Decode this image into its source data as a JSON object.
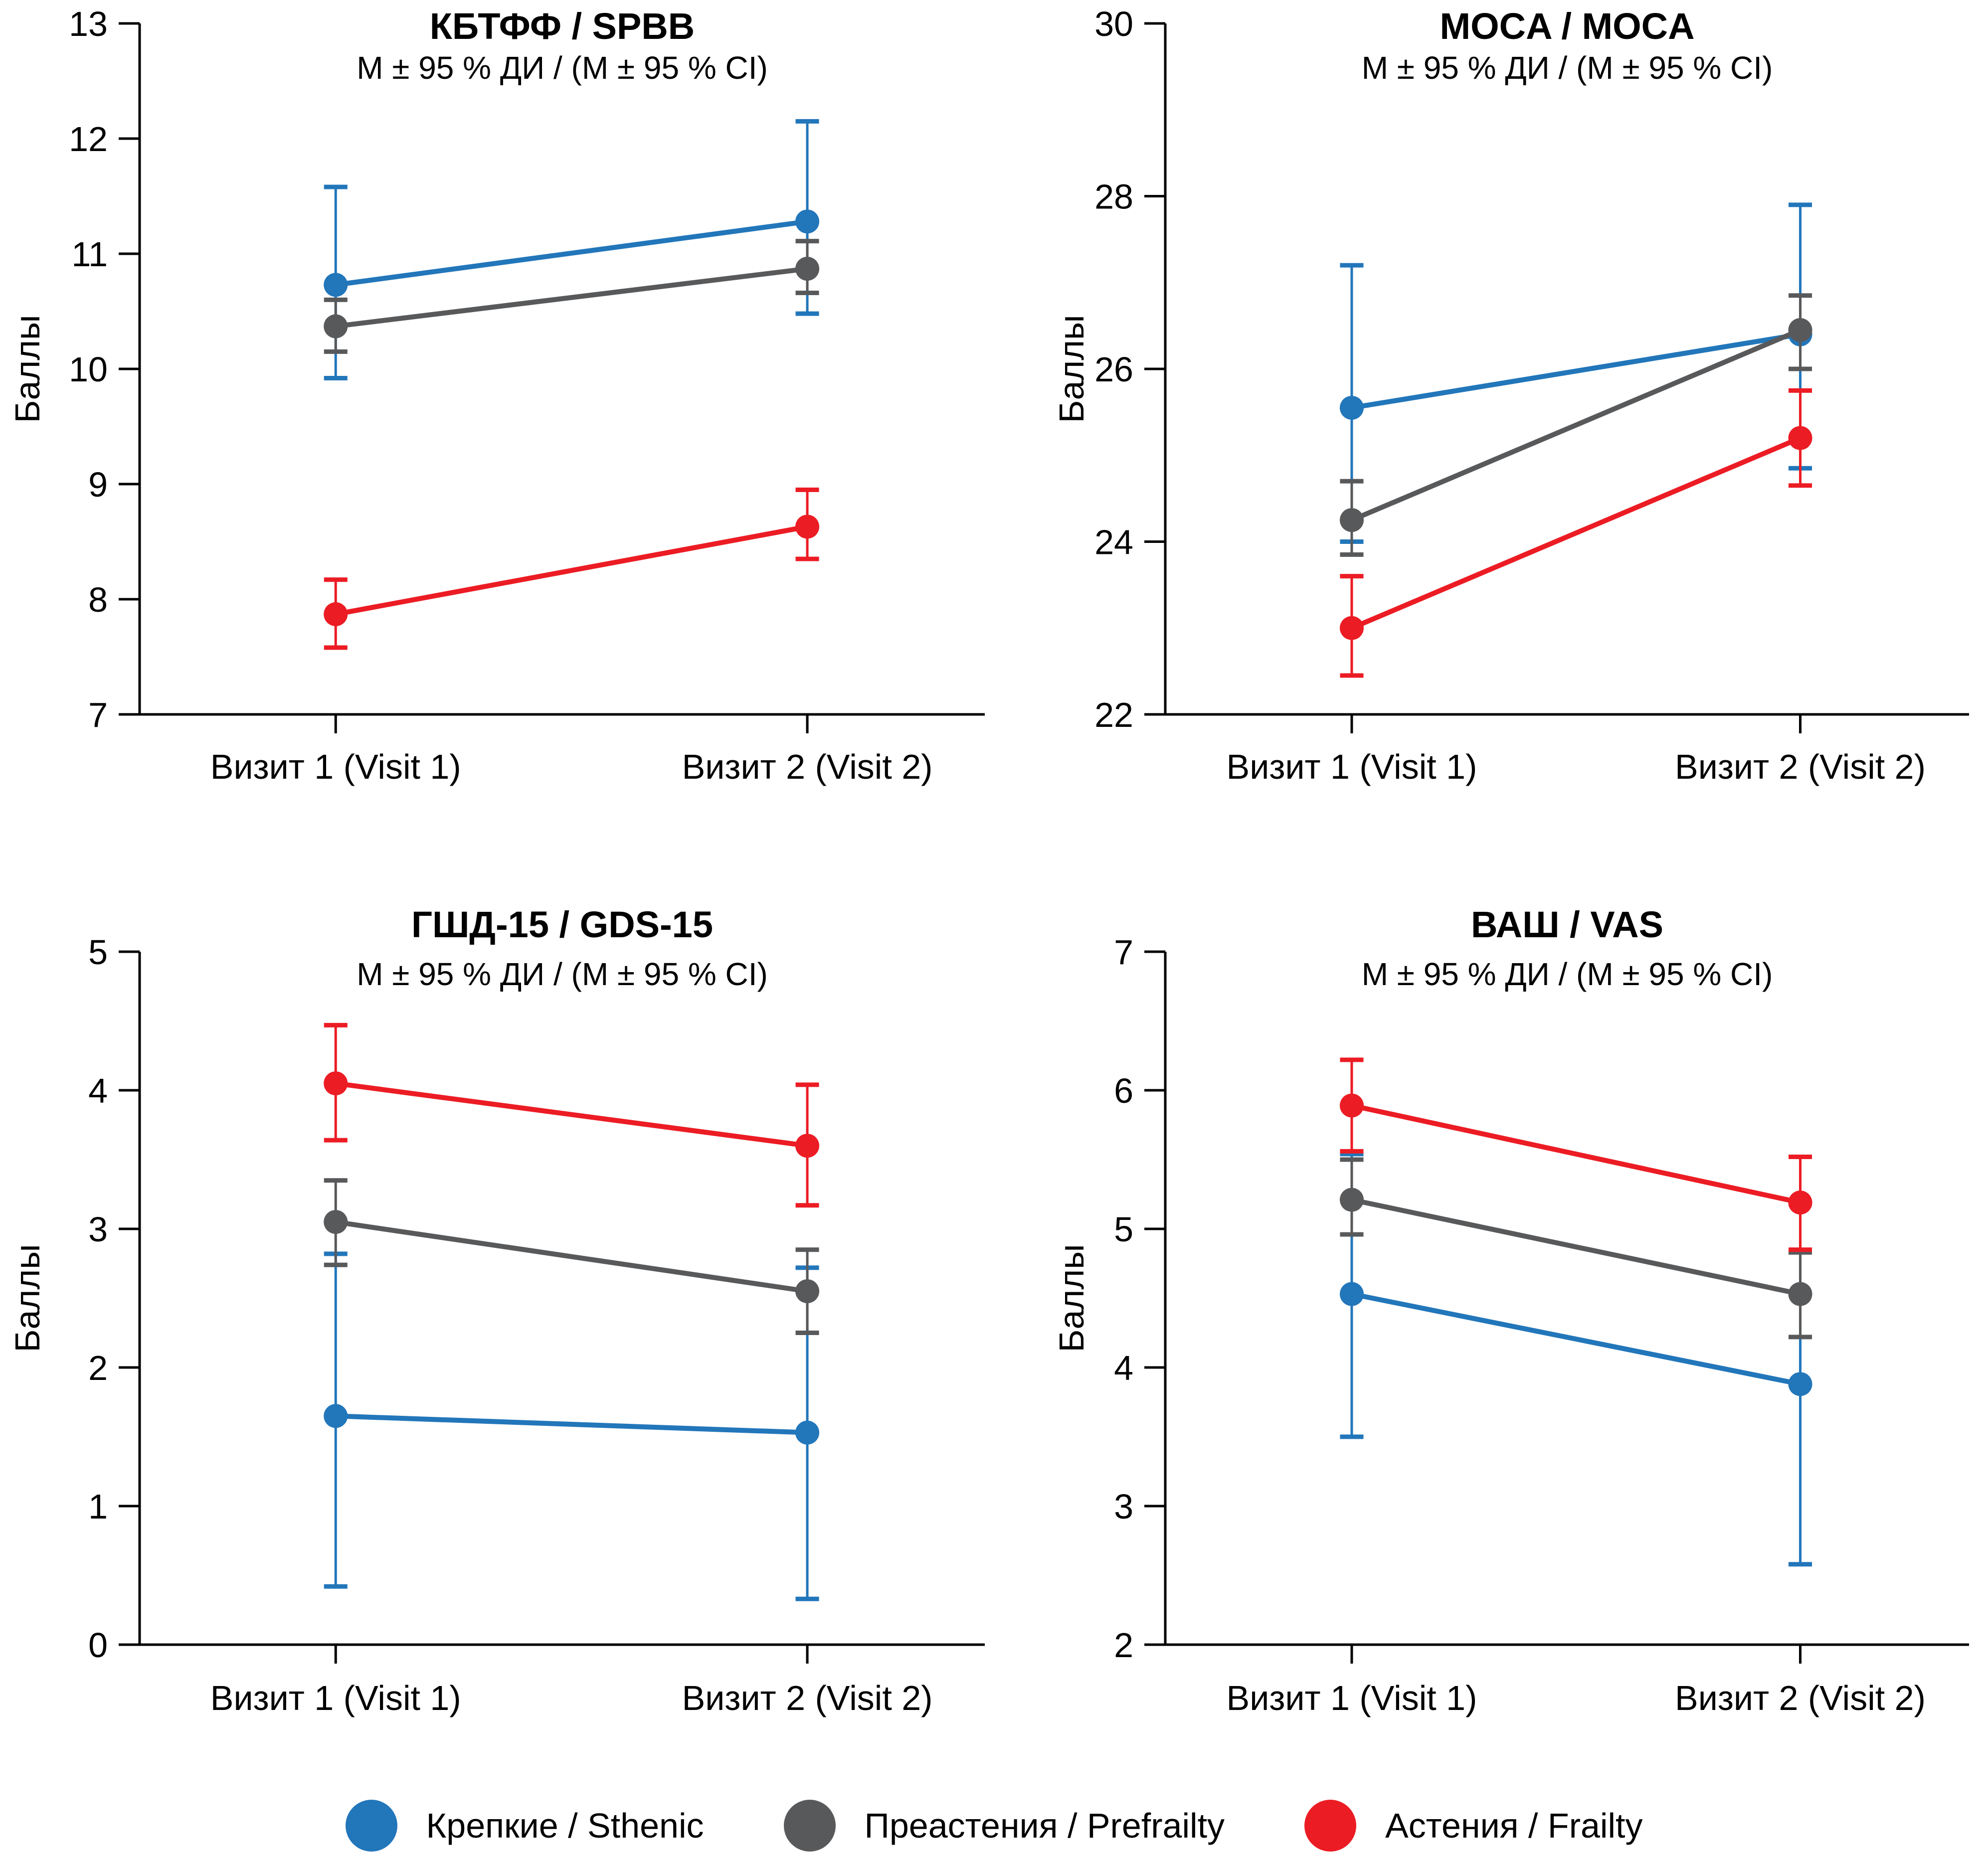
{
  "figure": {
    "background": "#ffffff",
    "axis_color": "#000000",
    "layout": "2x2 grid of line charts, shared legend at bottom"
  },
  "chart_data": [
    {
      "id": "spbb",
      "type": "line",
      "error_bars": "95% CI, capped",
      "title": "КБТФФ / SPBB",
      "subtitle": "М ± 95 % ДИ / (M ± 95 % CI)",
      "ylabel": "Баллы",
      "x_categories": [
        "Визит 1 (Visit 1)",
        "Визит 2 (Visit 2)"
      ],
      "ylim": [
        7,
        13
      ],
      "yticks": [
        7,
        8,
        9,
        10,
        11,
        12,
        13
      ],
      "grid": false,
      "series": [
        {
          "name": "Крепкие / Sthenic",
          "color": "#2276BA",
          "values": [
            10.73,
            11.28
          ],
          "ci_low": [
            9.92,
            10.48
          ],
          "ci_high": [
            11.58,
            12.15
          ]
        },
        {
          "name": "Преастения / Prefrailty",
          "color": "#58595B",
          "values": [
            10.37,
            10.87
          ],
          "ci_low": [
            10.15,
            10.66
          ],
          "ci_high": [
            10.6,
            11.11
          ]
        },
        {
          "name": "Астения / Frailty",
          "color": "#EC1C24",
          "values": [
            7.87,
            8.63
          ],
          "ci_low": [
            7.58,
            8.35
          ],
          "ci_high": [
            8.17,
            8.95
          ]
        }
      ]
    },
    {
      "id": "moca",
      "type": "line",
      "error_bars": "95% CI, capped",
      "title": "MOCA / MOCA",
      "subtitle": "М ± 95 % ДИ / (M ± 95 % CI)",
      "ylabel": "Баллы",
      "x_categories": [
        "Визит 1 (Visit 1)",
        "Визит 2 (Visit 2)"
      ],
      "ylim": [
        22,
        30
      ],
      "yticks": [
        22,
        24,
        26,
        28,
        30
      ],
      "grid": false,
      "series": [
        {
          "name": "Крепкие / Sthenic",
          "color": "#2276BA",
          "values": [
            25.55,
            26.4
          ],
          "ci_low": [
            24.0,
            24.85
          ],
          "ci_high": [
            27.2,
            27.9
          ]
        },
        {
          "name": "Преастения / Prefrailty",
          "color": "#58595B",
          "values": [
            24.25,
            26.45
          ],
          "ci_low": [
            23.85,
            26.0
          ],
          "ci_high": [
            24.7,
            26.85
          ]
        },
        {
          "name": "Астения / Frailty",
          "color": "#EC1C24",
          "values": [
            23.0,
            25.2
          ],
          "ci_low": [
            22.45,
            24.65
          ],
          "ci_high": [
            23.6,
            25.75
          ]
        }
      ]
    },
    {
      "id": "gds15",
      "type": "line",
      "error_bars": "95% CI, capped",
      "title": "ГШД-15 / GDS-15",
      "subtitle": "М ± 95 % ДИ / (M ± 95 % CI)",
      "ylabel": "Баллы",
      "x_categories": [
        "Визит 1 (Visit 1)",
        "Визит 2 (Visit 2)"
      ],
      "ylim": [
        0,
        5
      ],
      "yticks": [
        0,
        1,
        2,
        3,
        4,
        5
      ],
      "grid": false,
      "series": [
        {
          "name": "Крепкие / Sthenic",
          "color": "#2276BA",
          "values": [
            1.65,
            1.53
          ],
          "ci_low": [
            0.42,
            0.33
          ],
          "ci_high": [
            2.82,
            2.72
          ]
        },
        {
          "name": "Преастения / Prefrailty",
          "color": "#58595B",
          "values": [
            3.05,
            2.55
          ],
          "ci_low": [
            2.74,
            2.25
          ],
          "ci_high": [
            3.35,
            2.85
          ]
        },
        {
          "name": "Астения / Frailty",
          "color": "#EC1C24",
          "values": [
            4.05,
            3.6
          ],
          "ci_low": [
            3.64,
            3.17
          ],
          "ci_high": [
            4.47,
            4.04
          ]
        }
      ]
    },
    {
      "id": "vas",
      "type": "line",
      "error_bars": "95% CI, capped",
      "title": "ВАШ / VAS",
      "subtitle": "М ± 95 % ДИ / (M ± 95 % CI)",
      "ylabel": "Баллы",
      "x_categories": [
        "Визит 1 (Visit 1)",
        "Визит 2 (Visit 2)"
      ],
      "ylim": [
        2,
        7
      ],
      "yticks": [
        2,
        3,
        4,
        5,
        6,
        7
      ],
      "grid": false,
      "series": [
        {
          "name": "Крепкие / Sthenic",
          "color": "#2276BA",
          "values": [
            4.53,
            3.88
          ],
          "ci_low": [
            3.5,
            2.58
          ],
          "ci_high": [
            5.54,
            5.18
          ]
        },
        {
          "name": "Преастения / Prefrailty",
          "color": "#58595B",
          "values": [
            5.21,
            4.53
          ],
          "ci_low": [
            4.96,
            4.22
          ],
          "ci_high": [
            5.5,
            4.83
          ]
        },
        {
          "name": "Астения / Frailty",
          "color": "#EC1C24",
          "values": [
            5.89,
            5.19
          ],
          "ci_low": [
            5.56,
            4.85
          ],
          "ci_high": [
            6.22,
            5.52
          ]
        }
      ]
    }
  ],
  "legend": {
    "position": "bottom-center",
    "items": [
      {
        "label": "Крепкие / Sthenic",
        "color": "#2276BA"
      },
      {
        "label": "Преастения / Prefrailty",
        "color": "#58595B"
      },
      {
        "label": "Астения / Frailty",
        "color": "#EC1C24"
      }
    ]
  }
}
